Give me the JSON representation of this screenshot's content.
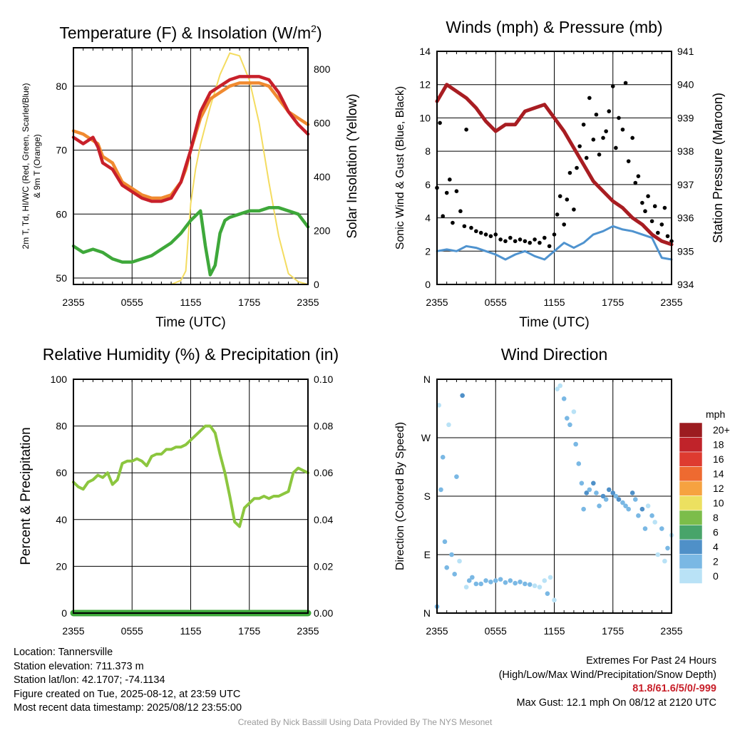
{
  "chart_data": [
    {
      "type": "line",
      "title": "Temperature (F) & Insolation (W/m²)",
      "title_parts": {
        "main": "Temperature (F) & Insolation (W/m",
        "sup": "2",
        "end": ")"
      },
      "xlabel": "Time (UTC)",
      "ylabel_lines": [
        "2m T, Td, HI/WC (Red, Green, Scarlet/Blue)",
        "& 9m T (Orange)"
      ],
      "ylabel_right": "Solar Insolation (Yellow)",
      "x_ticks": [
        "2355",
        "0555",
        "1155",
        "1755",
        "2355"
      ],
      "ylim": [
        49,
        86
      ],
      "y_ticks": [
        50,
        60,
        70,
        80
      ],
      "ylim_right": [
        0,
        880
      ],
      "y_ticks_right": [
        0,
        200,
        400,
        600,
        800
      ],
      "series": [
        {
          "role": "9m T",
          "color": "#f08a30",
          "axis": "left",
          "x": [
            0,
            1,
            2,
            2.5,
            3,
            4,
            5,
            6,
            7,
            8,
            9,
            10,
            11,
            11.5,
            12,
            13,
            14,
            15,
            16,
            17,
            18,
            19,
            20,
            21,
            22,
            23,
            24
          ],
          "y": [
            73,
            72.5,
            71.5,
            71,
            69,
            68,
            65,
            64,
            63,
            62.5,
            62.5,
            63,
            65,
            67,
            70,
            75,
            78,
            79,
            80,
            80.5,
            80.5,
            80.5,
            80,
            78,
            76,
            75,
            74
          ]
        },
        {
          "role": "2m T",
          "color": "#c8202a",
          "axis": "left",
          "x": [
            0,
            1,
            2,
            2.5,
            3,
            4,
            5,
            6,
            7,
            8,
            9,
            10,
            11,
            11.5,
            12,
            13,
            14,
            15,
            16,
            17,
            18,
            19,
            20,
            21,
            22,
            23,
            24
          ],
          "y": [
            72,
            71,
            72,
            70.5,
            68,
            67,
            64.5,
            63.5,
            62.5,
            62,
            62,
            62.5,
            65,
            67.5,
            70,
            76,
            79,
            80,
            81,
            81.5,
            81.5,
            81.5,
            81,
            79,
            76,
            74,
            72.5
          ]
        },
        {
          "role": "Td",
          "color": "#3ea83a",
          "axis": "left",
          "x": [
            0,
            1,
            2,
            3,
            4,
            5,
            6,
            7,
            8,
            9,
            10,
            11,
            11.5,
            12,
            13,
            13.5,
            14,
            14.5,
            15,
            15.5,
            16,
            17,
            18,
            19,
            20,
            21,
            22,
            23,
            24
          ],
          "y": [
            55,
            54,
            54.5,
            54,
            53,
            52.5,
            52.5,
            53,
            53.5,
            54.5,
            55.5,
            57,
            58,
            59,
            60.5,
            55,
            50.5,
            52,
            57,
            59,
            59.5,
            60,
            60.5,
            60.5,
            61,
            61,
            60.5,
            60,
            58
          ]
        },
        {
          "role": "Solar Insolation",
          "color": "#f4dc60",
          "axis": "right",
          "x": [
            0,
            2,
            4,
            6,
            8,
            10,
            11,
            11.5,
            12,
            12.5,
            13,
            14,
            15,
            16,
            17,
            18,
            19,
            20,
            21,
            22,
            23,
            24
          ],
          "y": [
            0,
            0,
            0,
            0,
            0,
            0,
            15,
            50,
            300,
            430,
            520,
            660,
            780,
            860,
            850,
            760,
            600,
            380,
            180,
            40,
            10,
            0
          ]
        }
      ]
    },
    {
      "type": "scatter",
      "title": "Winds (mph) & Pressure (mb)",
      "xlabel": "Time (UTC)",
      "ylabel": "Sonic Wind & Gust (Blue, Black)",
      "ylabel_right": "Station Pressure (Maroon)",
      "x_ticks": [
        "2355",
        "0555",
        "1155",
        "1755",
        "2355"
      ],
      "ylim": [
        0,
        14
      ],
      "y_ticks": [
        0,
        2,
        4,
        6,
        8,
        10,
        12,
        14
      ],
      "ylim_right": [
        934,
        941
      ],
      "y_ticks_right": [
        934,
        935,
        936,
        937,
        938,
        939,
        940,
        941
      ],
      "series": [
        {
          "role": "Station Pressure",
          "color": "#a81d22",
          "axis": "right",
          "x": [
            0,
            1,
            2,
            3,
            4,
            5,
            6,
            7,
            8,
            9,
            10,
            11,
            12,
            13,
            14,
            15,
            16,
            17,
            18,
            19,
            20,
            21,
            22,
            23,
            24
          ],
          "y": [
            939.5,
            940.0,
            939.8,
            939.6,
            939.3,
            938.9,
            938.6,
            938.8,
            938.8,
            939.2,
            939.3,
            939.4,
            939.0,
            938.6,
            938.1,
            937.6,
            937.1,
            936.8,
            936.5,
            936.3,
            936.0,
            935.8,
            935.5,
            935.3,
            935.2
          ]
        },
        {
          "role": "Sonic Wind",
          "color": "#4f93cf",
          "axis": "left",
          "x": [
            0,
            1,
            2,
            3,
            4,
            5,
            6,
            7,
            8,
            9,
            10,
            11,
            12,
            13,
            14,
            15,
            16,
            17,
            18,
            19,
            20,
            21,
            22,
            23,
            24
          ],
          "y": [
            2.0,
            2.1,
            2.0,
            2.3,
            2.2,
            2.0,
            1.8,
            1.5,
            1.8,
            2.0,
            1.7,
            1.5,
            2.0,
            2.5,
            2.2,
            2.5,
            3.0,
            3.2,
            3.5,
            3.3,
            3.2,
            3.0,
            2.8,
            1.6,
            1.5
          ]
        },
        {
          "role": "Gust",
          "color": "#000000",
          "axis": "left",
          "x": [
            0,
            0.3,
            0.6,
            1,
            1.3,
            1.6,
            2,
            2.4,
            2.8,
            3,
            3.5,
            4,
            4.5,
            5,
            5.5,
            6,
            6.5,
            7,
            7.5,
            8,
            8.5,
            9,
            9.5,
            10,
            10.5,
            11,
            11.5,
            12,
            12.3,
            12.6,
            13,
            13.3,
            13.6,
            14,
            14.3,
            14.6,
            15,
            15.3,
            15.6,
            16,
            16.3,
            16.6,
            17,
            17.3,
            17.6,
            18,
            18.3,
            18.6,
            19,
            19.3,
            19.6,
            20,
            20.3,
            20.6,
            21,
            21.3,
            21.6,
            22,
            22.3,
            22.6,
            23,
            23.3,
            23.6,
            24
          ],
          "y": [
            5.8,
            9.7,
            4.1,
            5.5,
            6.3,
            3.7,
            5.6,
            4.4,
            3.5,
            9.3,
            3.4,
            3.2,
            3.1,
            3.0,
            2.9,
            3.0,
            2.7,
            2.6,
            2.8,
            2.6,
            2.7,
            2.6,
            2.5,
            2.7,
            2.5,
            2.8,
            2.3,
            3.0,
            4.2,
            5.3,
            3.6,
            5.1,
            6.7,
            4.5,
            7.0,
            8.3,
            9.6,
            7.6,
            11.2,
            8.7,
            10.2,
            7.8,
            8.8,
            9.2,
            10.4,
            11.9,
            8.2,
            10.0,
            9.3,
            12.1,
            7.4,
            8.8,
            6.1,
            6.5,
            4.9,
            4.4,
            5.3,
            3.8,
            4.7,
            3.1,
            3.6,
            4.6,
            2.9,
            2.6
          ]
        }
      ]
    },
    {
      "type": "line",
      "title": "Relative Humidity (%) & Precipitation (in)",
      "xlabel": "",
      "ylabel": "Percent & Precipitation",
      "x_ticks": [
        "2355",
        "0555",
        "1155",
        "1755",
        "2355"
      ],
      "ylim": [
        0,
        100
      ],
      "y_ticks": [
        0,
        20,
        40,
        60,
        80,
        100
      ],
      "ylim_right": [
        0,
        0.1
      ],
      "y_ticks_right": [
        "0.00",
        "0.02",
        "0.04",
        "0.06",
        "0.08",
        "0.10"
      ],
      "series": [
        {
          "role": "Relative Humidity",
          "color": "#8cc63f",
          "axis": "left",
          "x": [
            0,
            0.5,
            1,
            1.5,
            2,
            2.5,
            3,
            3.5,
            4,
            4.5,
            5,
            5.5,
            6,
            6.5,
            7,
            7.5,
            8,
            8.5,
            9,
            9.5,
            10,
            10.5,
            11,
            11.5,
            12,
            12.5,
            13,
            13.5,
            14,
            14.5,
            15,
            15.5,
            16,
            16.5,
            17,
            17.5,
            18,
            18.5,
            19,
            19.5,
            20,
            20.5,
            21,
            21.5,
            22,
            22.5,
            23,
            23.5,
            24
          ],
          "y": [
            56,
            54,
            53,
            56,
            57,
            59,
            58,
            60,
            55,
            57,
            64,
            65,
            65,
            66,
            65,
            63,
            67,
            68,
            68,
            70,
            70,
            71,
            71,
            72,
            74,
            76,
            78,
            80,
            80,
            77,
            68,
            60,
            50,
            39,
            37,
            45,
            47,
            49,
            49,
            50,
            49,
            50,
            50,
            51,
            52,
            60,
            62,
            61,
            60
          ]
        },
        {
          "role": "Precipitation",
          "color": "#3ea83a",
          "axis": "right",
          "x": [
            0,
            24
          ],
          "y": [
            0,
            0
          ]
        }
      ]
    },
    {
      "type": "scatter",
      "title": "Wind Direction",
      "ylabel": "Direction (Colored By Speed)",
      "x_ticks": [
        "2355",
        "0555",
        "1155",
        "1755",
        "2355"
      ],
      "ylim": [
        0,
        360
      ],
      "y_ticks": [
        {
          "v": 0,
          "label": "N"
        },
        {
          "v": 90,
          "label": "E"
        },
        {
          "v": 180,
          "label": "S"
        },
        {
          "v": 270,
          "label": "W"
        },
        {
          "v": 360,
          "label": "N"
        }
      ],
      "colorbar": {
        "unit": "mph",
        "labels": [
          "20+",
          "18",
          "16",
          "14",
          "12",
          "10",
          "8",
          "6",
          "4",
          "2",
          "0"
        ],
        "colors": [
          "#9c1c20",
          "#c0232a",
          "#de3b30",
          "#ee6a30",
          "#f6a240",
          "#ece060",
          "#7cbd4a",
          "#48a46a",
          "#4f90c8",
          "#7ab8e4",
          "#b9e2f6"
        ]
      },
      "series": [
        {
          "role": "Wind Direction",
          "x": [
            0,
            0.2,
            0.4,
            0.6,
            0.8,
            1,
            1.2,
            1.5,
            1.8,
            2,
            2.3,
            2.6,
            3,
            3.3,
            3.6,
            4,
            4.5,
            5,
            5.5,
            6,
            6.5,
            7,
            7.5,
            8,
            8.5,
            9,
            9.5,
            10,
            10.5,
            11,
            11.3,
            11.6,
            12,
            12.3,
            12.6,
            13,
            13.3,
            13.6,
            14,
            14.2,
            14.5,
            14.8,
            15,
            15.3,
            15.6,
            16,
            16.3,
            16.6,
            17,
            17.3,
            17.6,
            18,
            18.3,
            18.6,
            19,
            19.3,
            19.6,
            20,
            20.3,
            20.6,
            21,
            21.3,
            21.6,
            22,
            22.3,
            22.6,
            23,
            23.3,
            23.6,
            24
          ],
          "y": [
            10,
            320,
            190,
            240,
            110,
            70,
            290,
            90,
            60,
            210,
            80,
            335,
            40,
            50,
            55,
            45,
            45,
            50,
            48,
            50,
            52,
            47,
            50,
            46,
            48,
            45,
            44,
            42,
            40,
            50,
            30,
            55,
            20,
            345,
            350,
            330,
            300,
            290,
            310,
            260,
            230,
            200,
            160,
            185,
            190,
            200,
            185,
            165,
            180,
            175,
            190,
            185,
            180,
            175,
            170,
            165,
            160,
            185,
            175,
            150,
            160,
            130,
            165,
            150,
            140,
            90,
            130,
            80,
            100,
            120
          ],
          "speed": [
            2,
            1,
            2,
            2,
            2,
            3,
            1,
            2,
            2,
            2,
            1,
            4,
            1,
            3,
            3,
            2,
            2,
            3,
            2,
            2,
            3,
            2,
            2,
            3,
            2,
            2,
            2,
            1,
            1,
            1,
            2,
            1,
            1,
            1,
            1,
            2,
            2,
            2,
            1,
            2,
            2,
            3,
            3,
            4,
            3,
            4,
            3,
            2,
            4,
            3,
            4,
            4,
            3,
            4,
            3,
            2,
            3,
            4,
            3,
            2,
            4,
            2,
            1,
            2,
            1,
            1,
            2,
            1,
            2,
            1
          ]
        }
      ]
    }
  ],
  "info_left": [
    "Location: Tannersville",
    "Station elevation: 711.373 m",
    "Station lat/lon: 42.1707; -74.1134",
    "Figure created on Tue, 2025-08-12, at 23:59 UTC",
    "Most recent data timestamp: 2025/08/12 23:55:00"
  ],
  "extremes": {
    "title": "Extremes For Past 24 Hours",
    "subtitle": "(High/Low/Max Wind/Precipitation/Snow Depth)",
    "values": "81.8/61.6/5/0/-999",
    "gust": "Max Gust: 12.1 mph On 08/12 at 2120 UTC"
  },
  "credit": "Created By Nick Bassill Using Data Provided By The NYS Mesonet"
}
